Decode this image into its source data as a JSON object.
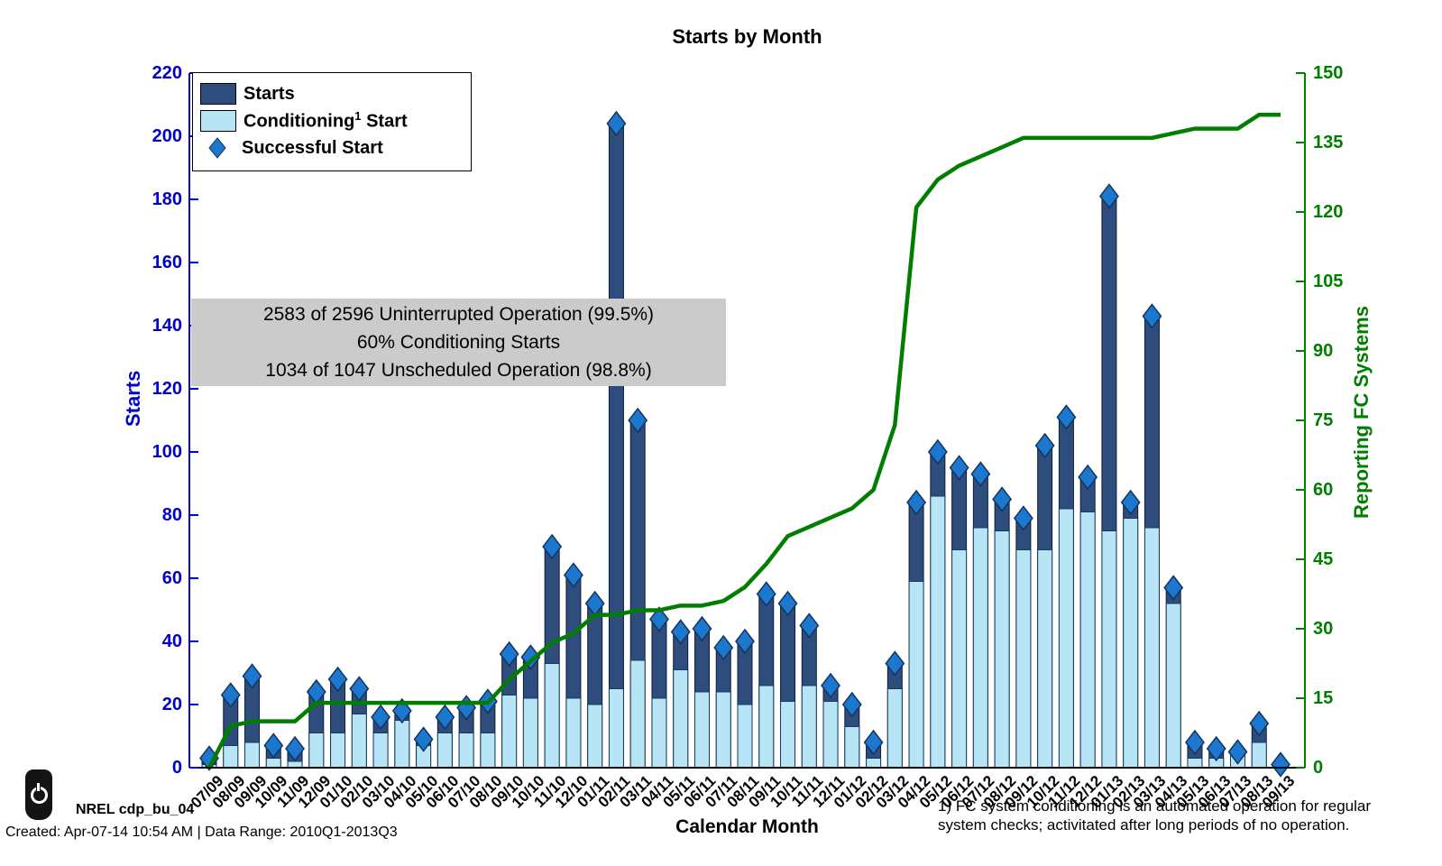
{
  "title": "Starts by Month",
  "legend": {
    "starts": "Starts",
    "conditioning_pre": "Conditioning",
    "conditioning_sup": "1",
    "conditioning_post": " Start",
    "successful": "Successful Start"
  },
  "annotation": {
    "line1": "2583 of 2596 Uninterrupted Operation (99.5%)",
    "line2": "60% Conditioning Starts",
    "line3": "1034 of 1047 Unscheduled Operation (98.8%)"
  },
  "axes": {
    "x": {
      "label": "Calendar Month"
    },
    "y_left": {
      "label": "Starts",
      "ticks": [
        0,
        20,
        40,
        60,
        80,
        100,
        120,
        140,
        160,
        180,
        200,
        220
      ]
    },
    "y_right": {
      "label": "Reporting FC Systems",
      "ticks": [
        0,
        15,
        30,
        45,
        60,
        75,
        90,
        105,
        120,
        135,
        150
      ]
    }
  },
  "colors": {
    "starts_bar": "#2E4C7C",
    "conditioning_bar": "#B7E5F5",
    "bar_border": "#0B1F3A",
    "diamond_fill": "#1B78CE",
    "diamond_border": "#15355F",
    "line_green": "#007E00",
    "axis_blue": "#0000CD",
    "axis_green": "#007E00",
    "axis_black": "#000000",
    "annotation_bg": "#CBCBCB"
  },
  "footer": {
    "brand": "NREL cdp_bu_04",
    "created": "Created: Apr-07-14 10:54 AM | Data Range: 2010Q1-2013Q3"
  },
  "footnote": {
    "line1": "1) FC system conditioning is an automated operation for regular",
    "line2": "system checks; activitated after long periods of no operation."
  },
  "chart_data": {
    "type": "combo",
    "title": "Starts by Month",
    "xlabel": "Calendar Month",
    "ylabel_left": "Starts",
    "ylabel_right": "Reporting FC Systems",
    "ylim_left": [
      0,
      220
    ],
    "ylim_right": [
      0,
      150
    ],
    "grid": false,
    "legend_position": "top-left-inside",
    "categories": [
      "07/09",
      "08/09",
      "09/09",
      "10/09",
      "11/09",
      "12/09",
      "01/10",
      "02/10",
      "03/10",
      "04/10",
      "05/10",
      "06/10",
      "07/10",
      "08/10",
      "09/10",
      "10/10",
      "11/10",
      "12/10",
      "01/11",
      "02/11",
      "03/11",
      "04/11",
      "05/11",
      "06/11",
      "07/11",
      "08/11",
      "09/11",
      "10/11",
      "11/11",
      "12/11",
      "01/12",
      "02/12",
      "03/12",
      "04/12",
      "05/12",
      "06/12",
      "07/12",
      "08/12",
      "09/12",
      "10/12",
      "11/12",
      "12/12",
      "01/13",
      "02/13",
      "03/13",
      "04/13",
      "05/13",
      "06/13",
      "07/13",
      "08/13",
      "09/13"
    ],
    "series": [
      {
        "name": "Starts",
        "type": "bar",
        "axis": "left",
        "values": [
          3,
          23,
          29,
          7,
          6,
          24,
          28,
          25,
          16,
          18,
          9,
          16,
          19,
          21,
          36,
          35,
          70,
          61,
          52,
          204,
          110,
          47,
          43,
          44,
          38,
          40,
          55,
          52,
          45,
          26,
          20,
          8,
          33,
          84,
          100,
          95,
          93,
          85,
          79,
          102,
          111,
          92,
          181,
          84,
          143,
          57,
          8,
          6,
          5,
          14,
          1
        ]
      },
      {
        "name": "Conditioning Start",
        "type": "bar-overlay",
        "axis": "left",
        "values": [
          1,
          7,
          8,
          3,
          2,
          11,
          11,
          17,
          11,
          15,
          7,
          11,
          11,
          11,
          23,
          22,
          33,
          22,
          20,
          25,
          34,
          22,
          31,
          24,
          24,
          20,
          26,
          21,
          26,
          21,
          13,
          3,
          25,
          59,
          86,
          69,
          76,
          75,
          69,
          69,
          82,
          81,
          75,
          79,
          76,
          52,
          3,
          3,
          4,
          8,
          1
        ]
      },
      {
        "name": "Successful Start",
        "type": "scatter-diamond",
        "axis": "left",
        "values": [
          3,
          23,
          29,
          7,
          6,
          24,
          28,
          25,
          16,
          18,
          9,
          16,
          19,
          21,
          36,
          35,
          70,
          61,
          52,
          204,
          110,
          47,
          43,
          44,
          38,
          40,
          55,
          52,
          45,
          26,
          20,
          8,
          33,
          84,
          100,
          95,
          93,
          85,
          79,
          102,
          111,
          92,
          181,
          84,
          143,
          57,
          8,
          6,
          5,
          14,
          1
        ]
      },
      {
        "name": "Reporting FC Systems",
        "type": "line",
        "axis": "right",
        "values": [
          0,
          9,
          10,
          10,
          10,
          14,
          14,
          14,
          14,
          14,
          14,
          14,
          14,
          14,
          19,
          23,
          27,
          29,
          33,
          33,
          34,
          34,
          35,
          35,
          36,
          39,
          44,
          50,
          52,
          54,
          56,
          60,
          74,
          121,
          127,
          130,
          132,
          134,
          136,
          136,
          136,
          136,
          136,
          136,
          136,
          137,
          138,
          138,
          138,
          141,
          141
        ]
      }
    ]
  }
}
